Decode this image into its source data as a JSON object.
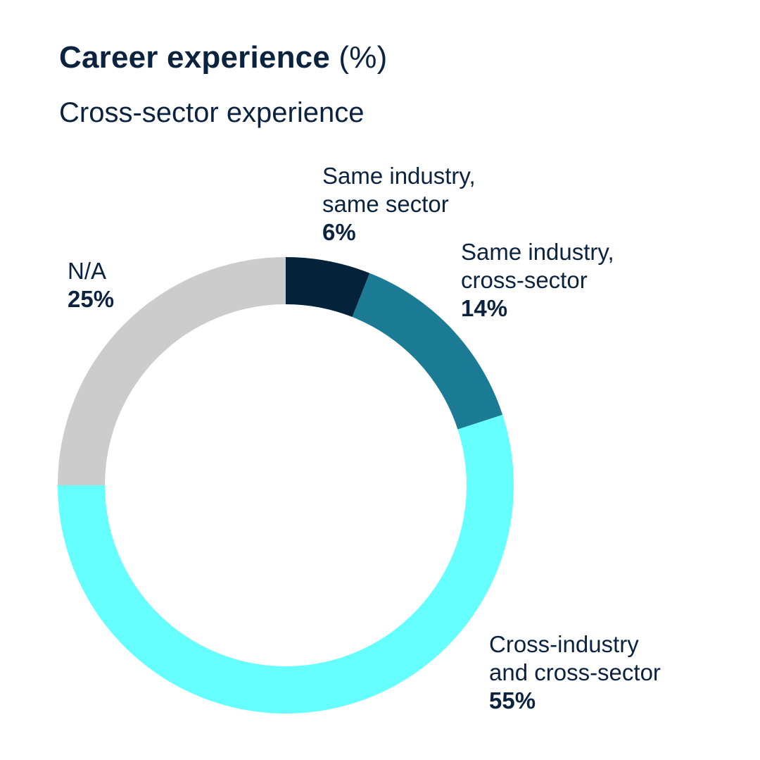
{
  "chart_data": {
    "type": "pie",
    "title": "Career experience",
    "title_unit": "(%)",
    "subtitle": "Cross-sector experience",
    "slices": [
      {
        "label_lines": [
          "Same industry,",
          "same sector"
        ],
        "value": 6,
        "value_label": "6%",
        "color": "#04223a"
      },
      {
        "label_lines": [
          "Same industry,",
          "cross-sector"
        ],
        "value": 14,
        "value_label": "14%",
        "color": "#1b7b95"
      },
      {
        "label_lines": [
          "Cross-industry",
          "and cross-sector"
        ],
        "value": 55,
        "value_label": "55%",
        "color": "#66ffff"
      },
      {
        "label_lines": [
          "N/A"
        ],
        "value": 25,
        "value_label": "25%",
        "color": "#cccccc"
      }
    ]
  }
}
